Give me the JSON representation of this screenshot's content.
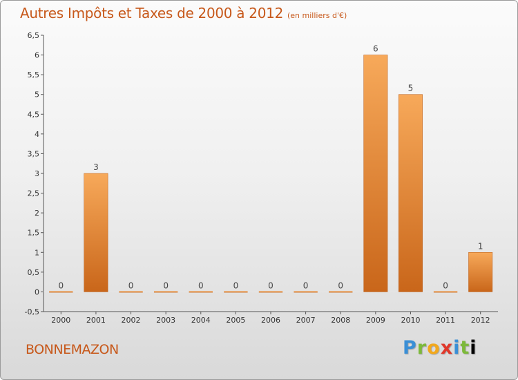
{
  "header": {
    "title": "Autres Impôts et Taxes de 2000 à 2012",
    "unit": "(en milliers d'€)"
  },
  "footer": {
    "town": "BONNEMAZON",
    "logo_letters": [
      "P",
      "r",
      "o",
      "x",
      "i",
      "t",
      "i"
    ]
  },
  "colors": {
    "bar_top": "#f7a95a",
    "bar_bottom": "#c9661a",
    "title": "#c7581a",
    "axis": "#555555",
    "grid": "#cccccc"
  },
  "chart_data": {
    "type": "bar",
    "categories": [
      "2000",
      "2001",
      "2002",
      "2003",
      "2004",
      "2005",
      "2006",
      "2007",
      "2008",
      "2009",
      "2010",
      "2011",
      "2012"
    ],
    "values": [
      0,
      3,
      0,
      0,
      0,
      0,
      0,
      0,
      0,
      6,
      5,
      0,
      1
    ],
    "data_labels": [
      "0",
      "3",
      "0",
      "0",
      "0",
      "0",
      "0",
      "0",
      "0",
      "6",
      "5",
      "0",
      "1"
    ],
    "ylim": [
      -0.5,
      6.5
    ],
    "yticks": [
      -0.5,
      0,
      0.5,
      1,
      1.5,
      2,
      2.5,
      3,
      3.5,
      4,
      4.5,
      5,
      5.5,
      6,
      6.5
    ],
    "ytick_labels": [
      "-0,5",
      "0",
      "0,5",
      "1",
      "1,5",
      "2",
      "2,5",
      "3",
      "3,5",
      "4",
      "4,5",
      "5",
      "5,5",
      "6",
      "6,5"
    ],
    "grid": false,
    "legend": "none"
  }
}
